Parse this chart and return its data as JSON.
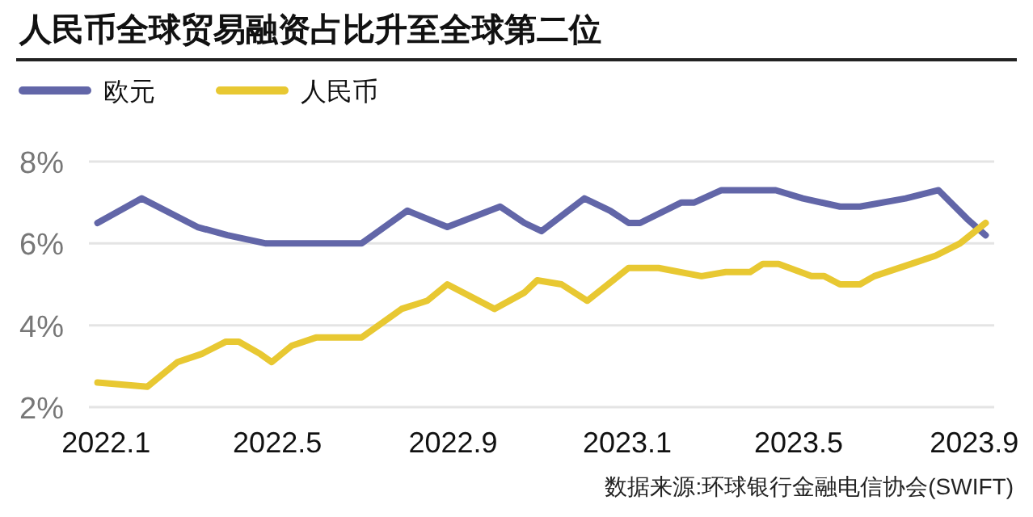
{
  "chart_data": {
    "type": "line",
    "title": "人民币全球贸易融资占比升至全球第二位",
    "annotations": [
      "数据来源:环球银行金融电信协会(SWIFT)"
    ],
    "legend": "top left",
    "grid": "y",
    "marker": "none",
    "line_style": "solid",
    "xlim": [
      "2021-12-20",
      "2023-09-15"
    ],
    "xticks": [
      {
        "value": "2022-01-01",
        "label": "2022.1"
      },
      {
        "value": "2022-05-01",
        "label": "2022.5"
      },
      {
        "value": "2022-09-01",
        "label": "2022.9"
      },
      {
        "value": "2023-01-01",
        "label": "2023.1"
      },
      {
        "value": "2023-05-01",
        "label": "2023.5"
      },
      {
        "value": "2023-09-01",
        "label": "2023.9"
      }
    ],
    "ylim": [
      2,
      8
    ],
    "yticks": [
      {
        "value": 2,
        "label": "2%"
      },
      {
        "value": 4,
        "label": "4%"
      },
      {
        "value": 6,
        "label": "6%"
      },
      {
        "value": 8,
        "label": "8%"
      }
    ],
    "series": [
      {
        "name": "欧元",
        "color": "#6266a8",
        "x": [
          "2021-12-26",
          "2022-01-26",
          "2022-03-06",
          "2022-03-27",
          "2022-04-23",
          "2022-06-29",
          "2022-07-31",
          "2022-08-28",
          "2022-10-04",
          "2022-10-21",
          "2022-11-02",
          "2022-12-02",
          "2022-12-20",
          "2023-01-02",
          "2023-01-10",
          "2023-02-08",
          "2023-02-17",
          "2023-03-08",
          "2023-04-15",
          "2023-05-04",
          "2023-05-30",
          "2023-06-13",
          "2023-07-15",
          "2023-08-07",
          "2023-08-27",
          "2023-09-09"
        ],
        "values": [
          6.5,
          7.1,
          6.4,
          6.2,
          6.0,
          6.0,
          6.8,
          6.4,
          6.9,
          6.5,
          6.3,
          7.1,
          6.8,
          6.5,
          6.5,
          7.0,
          7.0,
          7.3,
          7.3,
          7.1,
          6.9,
          6.9,
          7.1,
          7.3,
          6.6,
          6.2
        ]
      },
      {
        "name": "人民币",
        "color": "#e8c832",
        "x": [
          "2021-12-26",
          "2022-01-30",
          "2022-02-20",
          "2022-03-09",
          "2022-03-26",
          "2022-04-04",
          "2022-04-19",
          "2022-04-27",
          "2022-05-11",
          "2022-05-28",
          "2022-06-29",
          "2022-07-27",
          "2022-08-14",
          "2022-08-28",
          "2022-09-30",
          "2022-10-21",
          "2022-10-30",
          "2022-11-16",
          "2022-12-04",
          "2023-01-02",
          "2023-01-23",
          "2023-02-22",
          "2023-03-11",
          "2023-03-28",
          "2023-04-06",
          "2023-04-17",
          "2023-05-10",
          "2023-05-19",
          "2023-05-30",
          "2023-06-13",
          "2023-06-23",
          "2023-07-19",
          "2023-08-05",
          "2023-08-22",
          "2023-09-09"
        ],
        "values": [
          2.6,
          2.5,
          3.1,
          3.3,
          3.6,
          3.6,
          3.3,
          3.1,
          3.5,
          3.7,
          3.7,
          4.4,
          4.6,
          5.0,
          4.4,
          4.8,
          5.1,
          5.0,
          4.6,
          5.4,
          5.4,
          5.2,
          5.3,
          5.3,
          5.5,
          5.5,
          5.2,
          5.2,
          5.0,
          5.0,
          5.2,
          5.5,
          5.7,
          6.0,
          6.5
        ]
      }
    ]
  }
}
